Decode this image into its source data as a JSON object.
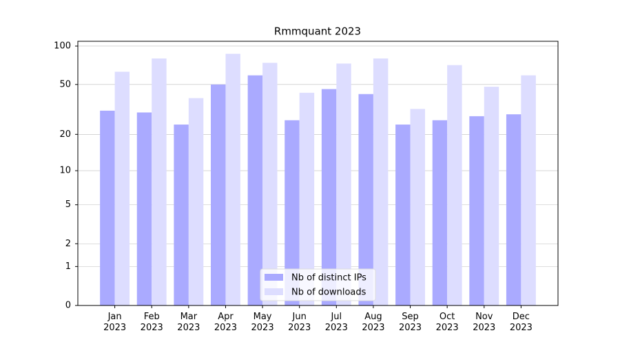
{
  "chart_data": {
    "type": "bar",
    "title": "Rmmquant 2023",
    "categories": [
      "Jan\n2023",
      "Feb\n2023",
      "Mar\n2023",
      "Apr\n2023",
      "May\n2023",
      "Jun\n2023",
      "Jul\n2023",
      "Aug\n2023",
      "Sep\n2023",
      "Oct\n2023",
      "Nov\n2023",
      "Dec\n2023"
    ],
    "series": [
      {
        "name": "Nb of distinct IPs",
        "color": "#aaaaff",
        "values": [
          31,
          30,
          24,
          50,
          59,
          26,
          46,
          42,
          24,
          26,
          28,
          29
        ]
      },
      {
        "name": "Nb of downloads",
        "color": "#ddddff",
        "values": [
          63,
          80,
          39,
          87,
          74,
          43,
          73,
          80,
          32,
          71,
          48,
          59
        ]
      }
    ],
    "yscale": "log1p",
    "ylim": [
      0,
      109
    ],
    "yticks": [
      0,
      1,
      2,
      5,
      10,
      20,
      50,
      100
    ],
    "grid": true,
    "legend": "lower center"
  }
}
